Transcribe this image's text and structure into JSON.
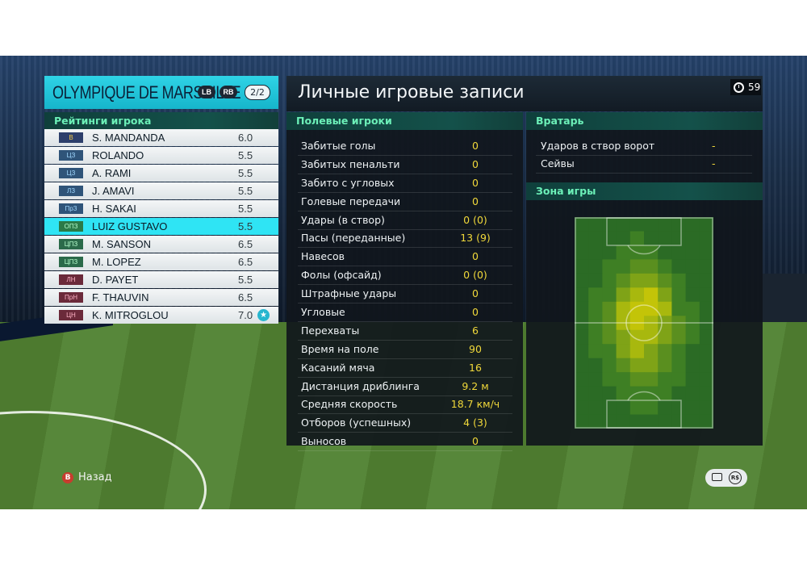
{
  "team": {
    "name": "OLYMPIQUE DE MARSEILLE",
    "lb_label": "LB",
    "rb_label": "RB",
    "page": "2/2"
  },
  "roster": {
    "title": "Рейтинги игрока",
    "players": [
      {
        "pos": "В",
        "pos_color": "#2d3f6b",
        "pos_text_color": "#f1c84a",
        "name": "S. MANDANDA",
        "rating": "6.0"
      },
      {
        "pos": "ЦЗ",
        "pos_color": "#2f5479",
        "pos_text_color": "#9fd8ff",
        "name": "ROLANDO",
        "rating": "5.5"
      },
      {
        "pos": "ЦЗ",
        "pos_color": "#2f5479",
        "pos_text_color": "#9fd8ff",
        "name": "A. RAMI",
        "rating": "5.5"
      },
      {
        "pos": "ЛЗ",
        "pos_color": "#2f5479",
        "pos_text_color": "#9fd8ff",
        "name": "J. AMAVI",
        "rating": "5.5"
      },
      {
        "pos": "ПрЗ",
        "pos_color": "#2f5479",
        "pos_text_color": "#9fd8ff",
        "name": "H. SAKAI",
        "rating": "5.5"
      },
      {
        "pos": "ОПЗ",
        "pos_color": "#2b7a47",
        "pos_text_color": "#b7ffce",
        "name": "LUIZ GUSTAVO",
        "rating": "5.5",
        "selected": true
      },
      {
        "pos": "ЦПЗ",
        "pos_color": "#2b6a4a",
        "pos_text_color": "#b7ffce",
        "name": "M. SANSON",
        "rating": "6.5"
      },
      {
        "pos": "ЦПЗ",
        "pos_color": "#2b6a4a",
        "pos_text_color": "#b7ffce",
        "name": "M. LOPEZ",
        "rating": "6.5"
      },
      {
        "pos": "ЛН",
        "pos_color": "#6b2a3a",
        "pos_text_color": "#ffb3c6",
        "name": "D. PAYET",
        "rating": "5.5"
      },
      {
        "pos": "ПрН",
        "pos_color": "#6b2a3a",
        "pos_text_color": "#ffb3c6",
        "name": "F. THAUVIN",
        "rating": "6.5"
      },
      {
        "pos": "ЦН",
        "pos_color": "#6b2a3a",
        "pos_text_color": "#ffb3c6",
        "name": "K. MITROGLOU",
        "rating": "7.0",
        "star": "★"
      }
    ]
  },
  "main": {
    "title": "Личные игровые записи",
    "timer": "59"
  },
  "field_players": {
    "title": "Полевые игроки",
    "stats": [
      {
        "label": "Забитые голы",
        "value": "0"
      },
      {
        "label": "Забитых пенальти",
        "value": "0"
      },
      {
        "label": "Забито с угловых",
        "value": "0"
      },
      {
        "label": "Голевые передачи",
        "value": "0"
      },
      {
        "label": "Удары (в створ)",
        "value": "0 (0)"
      },
      {
        "label": "Пасы (переданные)",
        "value": "13 (9)"
      },
      {
        "label": "Навесов",
        "value": "0"
      },
      {
        "label": "Фолы (офсайд)",
        "value": "0 (0)"
      },
      {
        "label": "Штрафные удары",
        "value": "0"
      },
      {
        "label": "Угловые",
        "value": "0"
      },
      {
        "label": "Перехваты",
        "value": "6"
      },
      {
        "label": "Время на поле",
        "value": "90"
      },
      {
        "label": "Касаний мяча",
        "value": "16"
      },
      {
        "label": "Дистанция дриблинга",
        "value": "9.2 м"
      },
      {
        "label": "Средняя скорость",
        "value": "18.7 км/ч"
      },
      {
        "label": "Отборов (успешных)",
        "value": "4 (3)"
      },
      {
        "label": "Выносов",
        "value": "0"
      }
    ]
  },
  "goalkeeper": {
    "title": "Вратарь",
    "stats": [
      {
        "label": "Ударов в створ ворот",
        "value": "-"
      },
      {
        "label": "Сейвы",
        "value": "-"
      }
    ]
  },
  "zone": {
    "title": "Зона игры"
  },
  "footer": {
    "back_key": "B",
    "back_label": "Назад",
    "rs_label": "R$"
  }
}
